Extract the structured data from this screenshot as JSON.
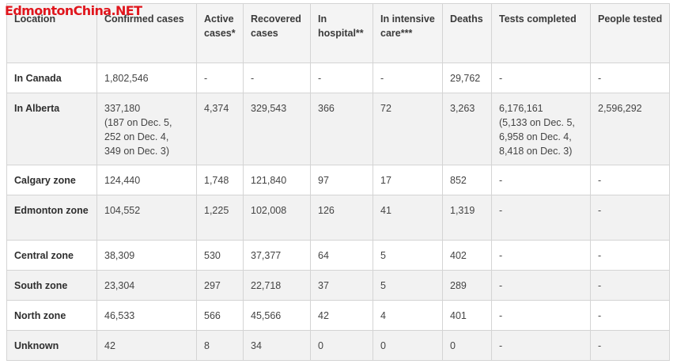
{
  "watermark": "EdmontonChina.NET",
  "table": {
    "headers": [
      "Location",
      "Confirmed cases",
      "Active cases*",
      "Recovered cases",
      "In hospital**",
      "In intensive care***",
      "Deaths",
      "Tests completed",
      "People tested"
    ],
    "rows": [
      {
        "location": "In Canada",
        "confirmed": "1,802,546",
        "active": "-",
        "recovered": "-",
        "hospital": "-",
        "icu": "-",
        "deaths": "29,762",
        "tests": "-",
        "people": "-"
      },
      {
        "location": "In Alberta",
        "confirmed": "337,180",
        "confirmed_notes": [
          "(187 on Dec. 5,",
          "252 on Dec. 4,",
          "349 on Dec. 3)"
        ],
        "active": "4,374",
        "recovered": "329,543",
        "hospital": "366",
        "icu": "72",
        "deaths": "3,263",
        "tests": "6,176,161",
        "tests_notes": [
          "(5,133 on Dec. 5,",
          "6,958 on Dec. 4,",
          "8,418 on Dec. 3)"
        ],
        "people": "2,596,292"
      },
      {
        "location": "Calgary zone",
        "confirmed": "124,440",
        "active": "1,748",
        "recovered": "121,840",
        "hospital": "97",
        "icu": "17",
        "deaths": "852",
        "tests": "-",
        "people": "-"
      },
      {
        "location": "Edmonton zone",
        "confirmed": "104,552",
        "active": "1,225",
        "recovered": "102,008",
        "hospital": "126",
        "icu": "41",
        "deaths": "1,319",
        "tests": "-",
        "people": "-"
      },
      {
        "location": "Central zone",
        "confirmed": "38,309",
        "active": "530",
        "recovered": "37,377",
        "hospital": "64",
        "icu": "5",
        "deaths": "402",
        "tests": "-",
        "people": "-"
      },
      {
        "location": "South zone",
        "confirmed": "23,304",
        "active": "297",
        "recovered": "22,718",
        "hospital": "37",
        "icu": "5",
        "deaths": "289",
        "tests": "-",
        "people": "-"
      },
      {
        "location": "North zone",
        "confirmed": "46,533",
        "active": "566",
        "recovered": "45,566",
        "hospital": "42",
        "icu": "4",
        "deaths": "401",
        "tests": "-",
        "people": "-"
      },
      {
        "location": "Unknown",
        "confirmed": "42",
        "active": "8",
        "recovered": "34",
        "hospital": "0",
        "icu": "0",
        "deaths": "0",
        "tests": "-",
        "people": "-"
      }
    ]
  },
  "colors": {
    "watermark": "#e0161d",
    "header_bg": "#f4f4f4",
    "row_alt_bg": "#f2f2f2",
    "border": "#d4d4d4"
  }
}
